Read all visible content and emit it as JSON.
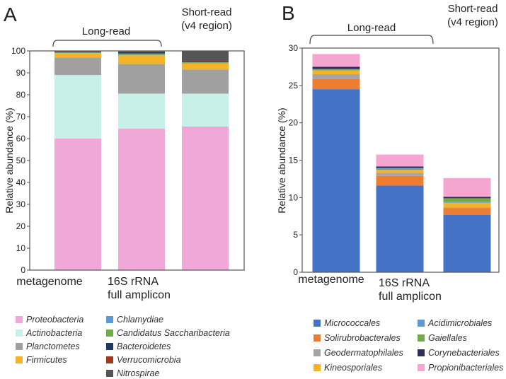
{
  "chart_data": [
    {
      "type": "bar",
      "stacked": true,
      "panel_label": "A",
      "ylabel": "Relative abundance (%)",
      "ylim": [
        0,
        100
      ],
      "yticks": [
        0,
        10,
        20,
        30,
        40,
        50,
        60,
        70,
        80,
        90,
        100
      ],
      "categories": [
        "metagenome",
        "16S rRNA full amplicon",
        "Short-read"
      ],
      "category_labels": [
        [
          "metagenome"
        ],
        [
          "16S rRNA",
          "full amplicon"
        ],
        []
      ],
      "group_labels": {
        "long_read": "Long-read",
        "short_read": [
          "Short-read",
          "(v4 region)"
        ]
      },
      "legend_placement": "bottom",
      "series": [
        {
          "name": "Proteobacteria",
          "color": "#f0a8d8",
          "values": [
            60,
            64.5,
            65.5
          ]
        },
        {
          "name": "Actinobacteria",
          "color": "#c6f0e8",
          "values": [
            29,
            16,
            15
          ]
        },
        {
          "name": "Planctometes",
          "color": "#a0a0a0",
          "values": [
            8,
            13.5,
            11
          ]
        },
        {
          "name": "Firmicutes",
          "color": "#f5b428",
          "values": [
            2,
            4,
            2.8
          ]
        },
        {
          "name": "Chlamydiae",
          "color": "#5b9bd5",
          "values": [
            0.2,
            0.5,
            0.3
          ]
        },
        {
          "name": "Candidatus Saccharibacteria",
          "color": "#70ad47",
          "values": [
            0.2,
            0.3,
            0.2
          ]
        },
        {
          "name": "Bacteroidetes",
          "color": "#203864",
          "values": [
            0.3,
            0.8,
            0.2
          ]
        },
        {
          "name": "Verrucomicrobia",
          "color": "#9e3a1a",
          "values": [
            0.1,
            0.2,
            0.3
          ]
        },
        {
          "name": "Nitrospirae",
          "color": "#555555",
          "values": [
            0.2,
            0.2,
            4.7
          ]
        }
      ]
    },
    {
      "type": "bar",
      "stacked": true,
      "panel_label": "B",
      "ylabel": "Relative abundance (%)",
      "ylim": [
        0,
        30
      ],
      "yticks": [
        0,
        5,
        10,
        15,
        20,
        25,
        30
      ],
      "categories": [
        "metagenome",
        "16S rRNA full amplicon",
        "Short-read"
      ],
      "category_labels": [
        [
          "metagenome"
        ],
        [
          "16S rRNA",
          "full amplicon"
        ],
        []
      ],
      "group_labels": {
        "long_read": "Long-read",
        "short_read": [
          "Short-read",
          "(v4 region)"
        ]
      },
      "legend_placement": "bottom",
      "series": [
        {
          "name": "Micrococcales",
          "color": "#4472c4",
          "values": [
            24.5,
            11.6,
            7.7
          ]
        },
        {
          "name": "Solirubrobacterales",
          "color": "#ed7d31",
          "values": [
            1.4,
            1.3,
            0.9
          ]
        },
        {
          "name": "Geodermatophilales",
          "color": "#a5a5a5",
          "values": [
            0.6,
            0.4,
            0.1
          ]
        },
        {
          "name": "Kineosporiales",
          "color": "#f5b428",
          "values": [
            0.5,
            0.4,
            0.6
          ]
        },
        {
          "name": "Acidimicrobiales",
          "color": "#5b9bd5",
          "values": [
            0.1,
            0.2,
            0.1
          ]
        },
        {
          "name": "Gaiellales",
          "color": "#70ad47",
          "values": [
            0.1,
            0.05,
            0.5
          ]
        },
        {
          "name": "Corynebacteriales",
          "color": "#2e2e5c",
          "values": [
            0.3,
            0.2,
            0.2
          ]
        },
        {
          "name": "Propionibacteriales",
          "color": "#f4a6d0",
          "values": [
            1.7,
            1.6,
            2.5
          ]
        }
      ]
    }
  ]
}
